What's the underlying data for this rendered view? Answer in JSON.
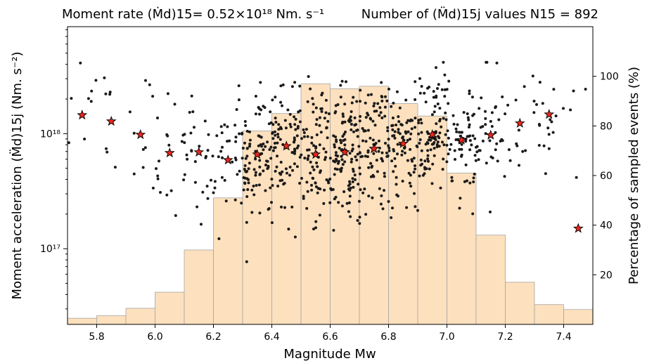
{
  "chart_data": {
    "type": "scatter",
    "title_left": "Moment rate (Ṁd)15= 0.52×10¹⁸ Nm. s⁻¹",
    "title_right": "Number of (M̈d)15j values N15 = 892",
    "xlabel": "Magnitude Mw",
    "ylabel_left": "Moment acceleration (M̈d)15j (Nm. s⁻²)",
    "ylabel_right": "Percentage of sampled events (%)",
    "xlim": [
      5.7,
      7.5
    ],
    "ylim_left_log": [
      2.2e+16,
      8.5e+18
    ],
    "ylim_right": [
      0,
      120
    ],
    "left_scale": "log",
    "x_ticks": [
      5.8,
      6.0,
      6.2,
      6.4,
      6.6,
      6.8,
      7.0,
      7.2,
      7.4
    ],
    "x_tick_labels": [
      "5.8",
      "6.0",
      "6.2",
      "6.4",
      "6.6",
      "6.8",
      "7.0",
      "7.2",
      "7.4"
    ],
    "left_major_ticks": [
      1e+17,
      1e+18
    ],
    "left_major_tick_labels": [
      "10¹⁷",
      "10¹⁸"
    ],
    "right_ticks": [
      20,
      40,
      60,
      80,
      100
    ],
    "right_tick_labels": [
      "20",
      "40",
      "60",
      "80",
      "100"
    ],
    "histogram": {
      "name": "Percentage of sampled events",
      "color": "#fde0bd",
      "edge_color": "#a6a6a6",
      "bins": [
        5.7,
        5.8,
        5.9,
        6.0,
        6.1,
        6.2,
        6.3,
        6.4,
        6.5,
        6.6,
        6.7,
        6.8,
        6.9,
        7.0,
        7.1,
        7.2,
        7.3,
        7.4,
        7.5
      ],
      "values": [
        2.5,
        3.5,
        6.5,
        13,
        30,
        51,
        78,
        85,
        97,
        95,
        96,
        89,
        84,
        61,
        36,
        17,
        8,
        6
      ]
    },
    "stars": {
      "name": "Median per bin",
      "color": "#e8261e",
      "x": [
        5.75,
        5.85,
        5.95,
        6.05,
        6.15,
        6.25,
        6.35,
        6.45,
        6.55,
        6.65,
        6.75,
        6.85,
        6.95,
        7.05,
        7.15,
        7.25,
        7.35,
        7.45
      ],
      "y": [
        1.45e+18,
        1.28e+18,
        9.8e+17,
        6.8e+17,
        6.9e+17,
        5.9e+17,
        6.6e+17,
        7.8e+17,
        6.6e+17,
        6.9e+17,
        7.4e+17,
        8.2e+17,
        9.8e+17,
        8.8e+17,
        9.7e+17,
        1.23e+18,
        1.47e+18,
        1.5e+17
      ]
    },
    "points": {
      "name": "(M̈d)15j values",
      "count": 892,
      "color": "#1a1a1a"
    },
    "grid": false
  }
}
